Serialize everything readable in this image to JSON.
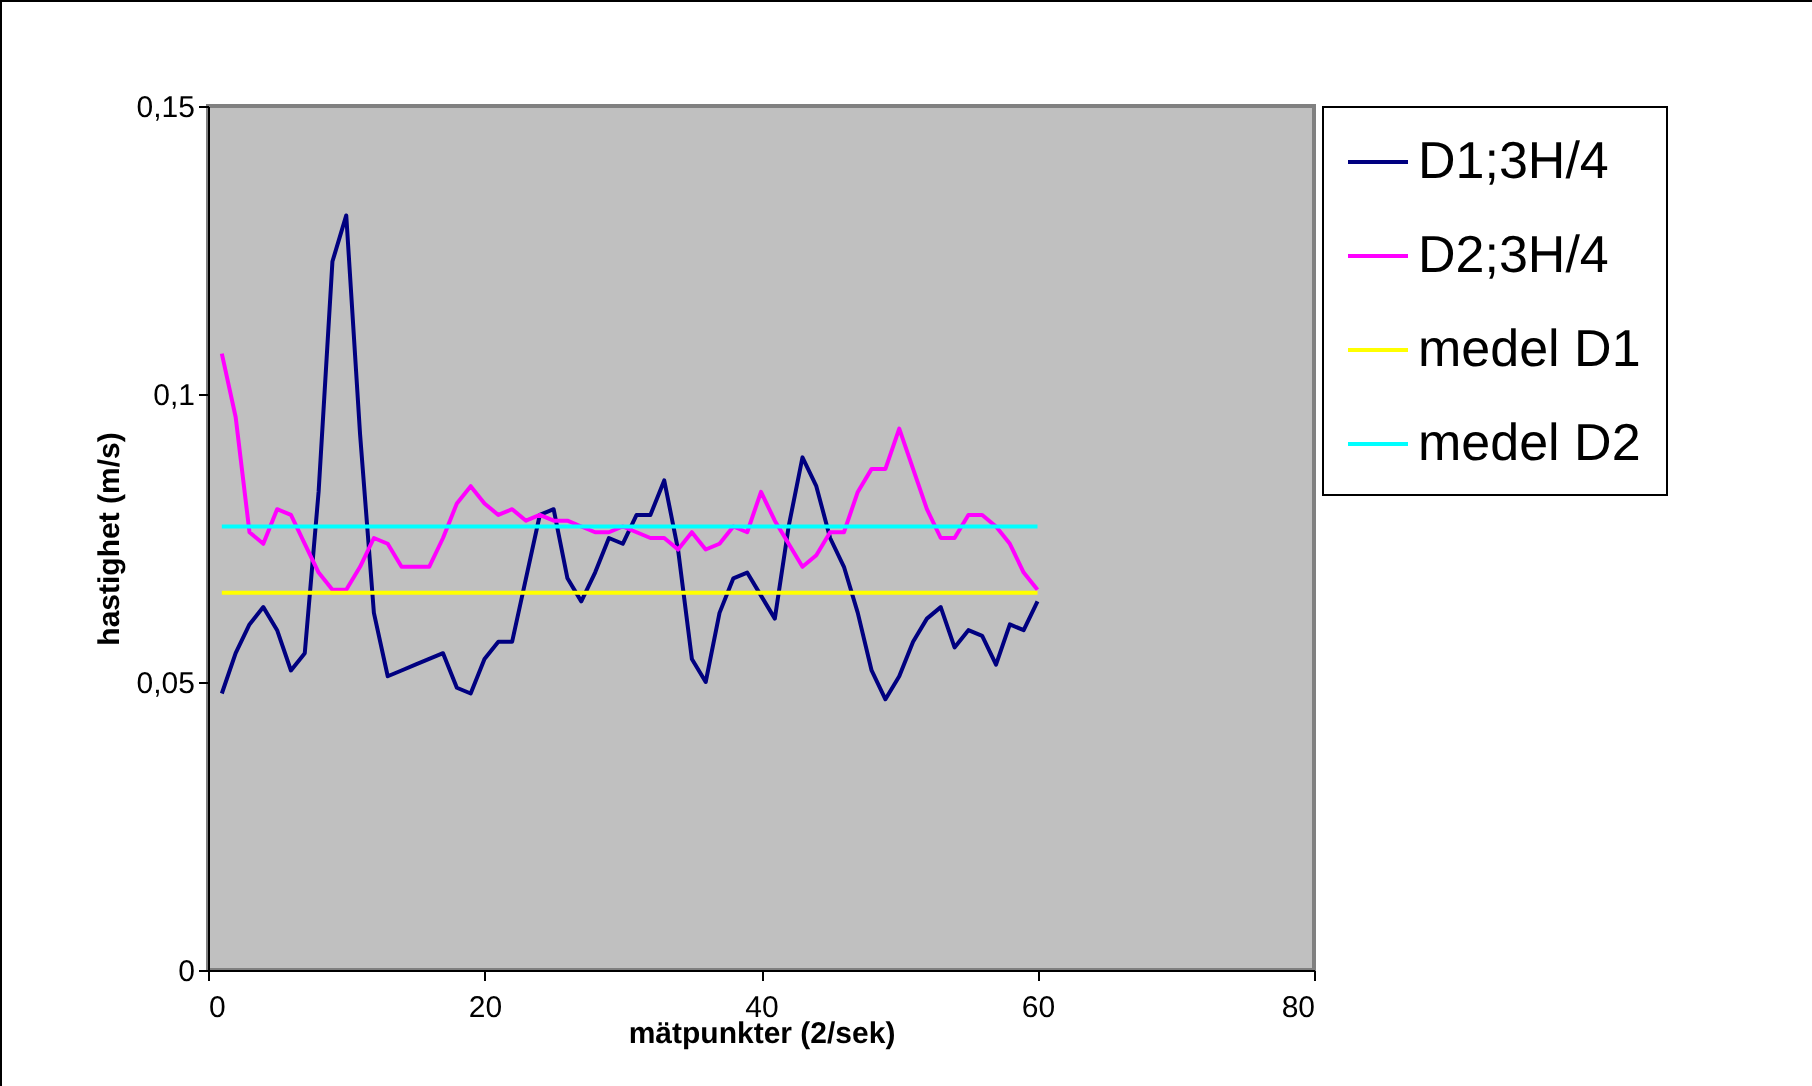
{
  "chart_data": {
    "type": "line",
    "xlabel": "mätpunkter (2/sek)",
    "ylabel": "hastighet (m/s)",
    "x": [
      1,
      2,
      3,
      4,
      5,
      6,
      7,
      8,
      9,
      10,
      11,
      12,
      13,
      14,
      15,
      16,
      17,
      18,
      19,
      20,
      21,
      22,
      23,
      24,
      25,
      26,
      27,
      28,
      29,
      30,
      31,
      32,
      33,
      34,
      35,
      36,
      37,
      38,
      39,
      40,
      41,
      42,
      43,
      44,
      45,
      46,
      47,
      48,
      49,
      50,
      51,
      52,
      53,
      54,
      55,
      56,
      57,
      58,
      59,
      60
    ],
    "series": [
      {
        "name": "D1;3H/4",
        "color": "#000080",
        "values": [
          0.048,
          0.055,
          0.06,
          0.063,
          0.059,
          0.052,
          0.055,
          0.083,
          0.123,
          0.131,
          0.093,
          0.062,
          0.051,
          0.052,
          0.053,
          0.054,
          0.055,
          0.049,
          0.048,
          0.054,
          0.057,
          0.057,
          0.068,
          0.079,
          0.08,
          0.068,
          0.064,
          0.069,
          0.075,
          0.074,
          0.079,
          0.079,
          0.085,
          0.073,
          0.054,
          0.05,
          0.062,
          0.068,
          0.069,
          0.065,
          0.061,
          0.077,
          0.089,
          0.084,
          0.075,
          0.07,
          0.062,
          0.052,
          0.047,
          0.051,
          0.057,
          0.061,
          0.063,
          0.056,
          0.059,
          0.058,
          0.053,
          0.06,
          0.059,
          0.064
        ]
      },
      {
        "name": "D2;3H/4",
        "color": "#ff00ff",
        "values": [
          0.107,
          0.096,
          0.076,
          0.074,
          0.08,
          0.079,
          0.074,
          0.069,
          0.066,
          0.066,
          0.07,
          0.075,
          0.074,
          0.07,
          0.07,
          0.07,
          0.075,
          0.081,
          0.084,
          0.081,
          0.079,
          0.08,
          0.078,
          0.079,
          0.078,
          0.078,
          0.077,
          0.076,
          0.076,
          0.077,
          0.076,
          0.075,
          0.075,
          0.073,
          0.076,
          0.073,
          0.074,
          0.077,
          0.076,
          0.083,
          0.078,
          0.074,
          0.07,
          0.072,
          0.076,
          0.076,
          0.083,
          0.087,
          0.087,
          0.094,
          0.087,
          0.08,
          0.075,
          0.075,
          0.079,
          0.079,
          0.077,
          0.074,
          0.069,
          0.066
        ]
      },
      {
        "name": "medel D1",
        "color": "#ffff00",
        "values": [
          0.0655,
          0.0655,
          0.0655,
          0.0655,
          0.0655,
          0.0655,
          0.0655,
          0.0655,
          0.0655,
          0.0655,
          0.0655,
          0.0655,
          0.0655,
          0.0655,
          0.0655,
          0.0655,
          0.0655,
          0.0655,
          0.0655,
          0.0655,
          0.0655,
          0.0655,
          0.0655,
          0.0655,
          0.0655,
          0.0655,
          0.0655,
          0.0655,
          0.0655,
          0.0655,
          0.0655,
          0.0655,
          0.0655,
          0.0655,
          0.0655,
          0.0655,
          0.0655,
          0.0655,
          0.0655,
          0.0655,
          0.0655,
          0.0655,
          0.0655,
          0.0655,
          0.0655,
          0.0655,
          0.0655,
          0.0655,
          0.0655,
          0.0655,
          0.0655,
          0.0655,
          0.0655,
          0.0655,
          0.0655,
          0.0655,
          0.0655,
          0.0655,
          0.0655,
          0.0655
        ]
      },
      {
        "name": "medel D2",
        "color": "#00ffff",
        "values": [
          0.077,
          0.077,
          0.077,
          0.077,
          0.077,
          0.077,
          0.077,
          0.077,
          0.077,
          0.077,
          0.077,
          0.077,
          0.077,
          0.077,
          0.077,
          0.077,
          0.077,
          0.077,
          0.077,
          0.077,
          0.077,
          0.077,
          0.077,
          0.077,
          0.077,
          0.077,
          0.077,
          0.077,
          0.077,
          0.077,
          0.077,
          0.077,
          0.077,
          0.077,
          0.077,
          0.077,
          0.077,
          0.077,
          0.077,
          0.077,
          0.077,
          0.077,
          0.077,
          0.077,
          0.077,
          0.077,
          0.077,
          0.077,
          0.077,
          0.077,
          0.077,
          0.077,
          0.077,
          0.077,
          0.077,
          0.077,
          0.077,
          0.077,
          0.077,
          0.077
        ]
      }
    ],
    "xlim": [
      0,
      80
    ],
    "xticks": [
      0,
      20,
      40,
      60,
      80
    ],
    "ylim": [
      0,
      0.15
    ],
    "yticks": [
      0,
      {
        "value": 0.05,
        "label": "0,05"
      },
      {
        "value": 0.1,
        "label": "0,1"
      },
      {
        "value": 0.15,
        "label": "0,15"
      }
    ],
    "grid": false,
    "legend": "right",
    "marker": "none",
    "line_style": "solid"
  }
}
